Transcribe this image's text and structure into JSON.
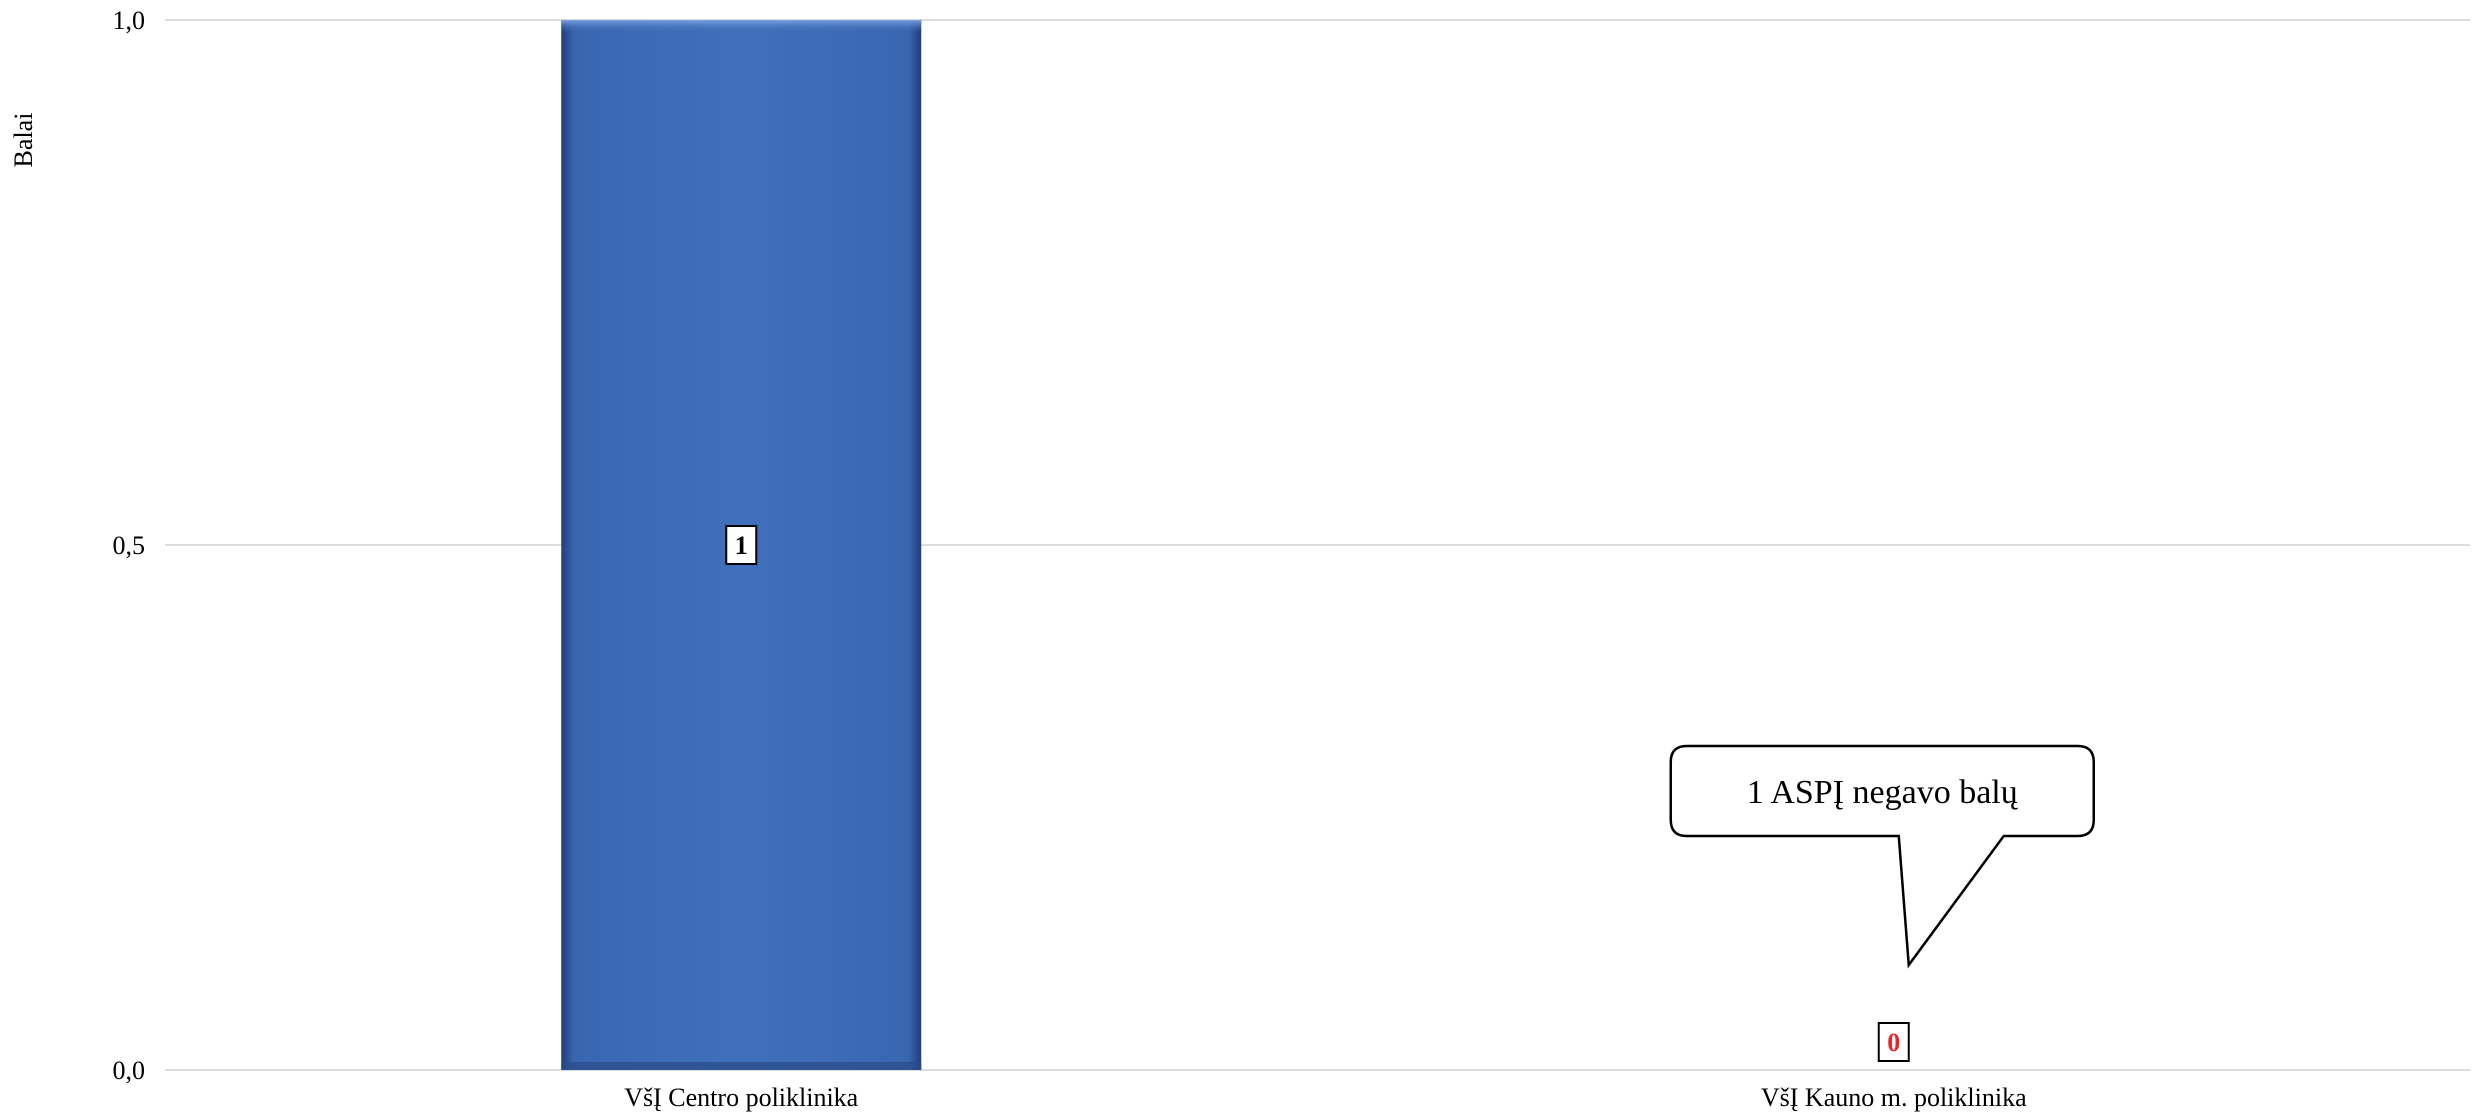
{
  "chart_data": {
    "type": "bar",
    "categories": [
      "VšĮ Centro poliklinika",
      "VšĮ Kauno m. poliklinika"
    ],
    "values": [
      1,
      0
    ],
    "data_labels": [
      "1",
      "0"
    ],
    "data_label_colors": [
      "#000000",
      "#e8262a"
    ],
    "title": "",
    "xlabel": "",
    "ylabel": "Balai",
    "ylim": [
      0,
      1
    ],
    "yticks": [
      0,
      0.5,
      1
    ],
    "ytick_labels": [
      "0,0",
      "0,5",
      "1,0"
    ],
    "grid": true,
    "bar_color": "#4070bb",
    "annotation": {
      "text": "1 ASPĮ negavo balų",
      "category": "VšĮ Kauno m. poliklinika"
    }
  }
}
